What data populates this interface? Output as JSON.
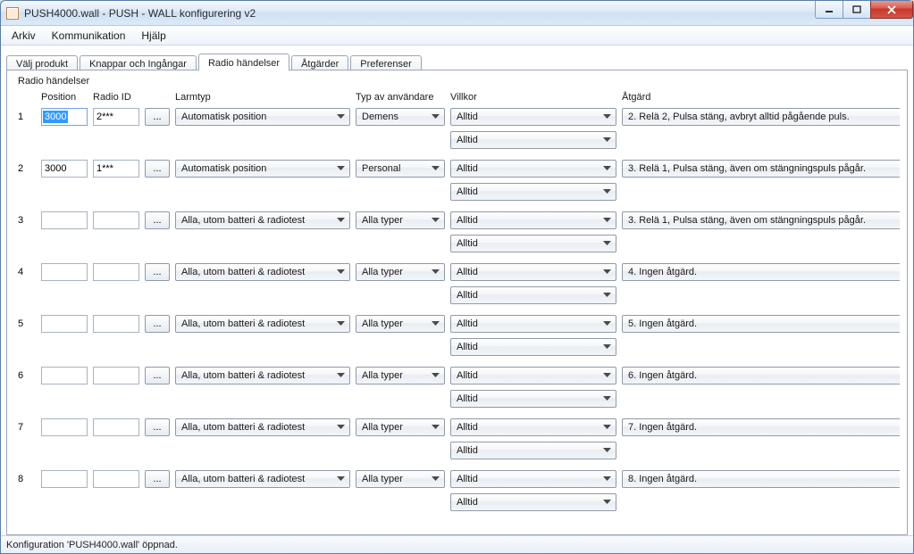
{
  "window_title": "PUSH4000.wall - PUSH - WALL konfigurering v2",
  "menu": {
    "arkiv": "Arkiv",
    "komm": "Kommunikation",
    "hjalp": "Hjälp"
  },
  "tabs": {
    "valj_produkt": "Välj produkt",
    "knappar": "Knappar och Ingångar",
    "radio": "Radio händelser",
    "atgarder": "Åtgärder",
    "preferenser": "Preferenser"
  },
  "group_title": "Radio händelser",
  "headers": {
    "position": "Position",
    "radio_id": "Radio ID",
    "larmtyp": "Larmtyp",
    "typ_av_anv": "Typ av användare",
    "villkor": "Villkor",
    "atgard": "Åtgärd"
  },
  "ellipsis": "...",
  "rows": [
    {
      "n": "1",
      "pos": "3000",
      "pos_selected": true,
      "rid": "2***",
      "larm": "Automatisk position",
      "typ": "Demens",
      "v1": "Alltid",
      "v2": "Alltid",
      "atg": "2. Relä 2, Pulsa stäng, avbryt alltid pågående puls."
    },
    {
      "n": "2",
      "pos": "3000",
      "pos_selected": false,
      "rid": "1***",
      "larm": "Automatisk position",
      "typ": "Personal",
      "v1": "Alltid",
      "v2": "Alltid",
      "atg": "3. Relä 1, Pulsa stäng, även om stängningspuls pågår."
    },
    {
      "n": "3",
      "pos": "",
      "pos_selected": false,
      "rid": "",
      "larm": "Alla, utom batteri & radiotest",
      "typ": "Alla typer",
      "v1": "Alltid",
      "v2": "Alltid",
      "atg": "3. Relä 1, Pulsa stäng, även om stängningspuls pågår."
    },
    {
      "n": "4",
      "pos": "",
      "pos_selected": false,
      "rid": "",
      "larm": "Alla, utom batteri & radiotest",
      "typ": "Alla typer",
      "v1": "Alltid",
      "v2": "Alltid",
      "atg": "4. Ingen åtgärd."
    },
    {
      "n": "5",
      "pos": "",
      "pos_selected": false,
      "rid": "",
      "larm": "Alla, utom batteri & radiotest",
      "typ": "Alla typer",
      "v1": "Alltid",
      "v2": "Alltid",
      "atg": "5. Ingen åtgärd."
    },
    {
      "n": "6",
      "pos": "",
      "pos_selected": false,
      "rid": "",
      "larm": "Alla, utom batteri & radiotest",
      "typ": "Alla typer",
      "v1": "Alltid",
      "v2": "Alltid",
      "atg": "6. Ingen åtgärd."
    },
    {
      "n": "7",
      "pos": "",
      "pos_selected": false,
      "rid": "",
      "larm": "Alla, utom batteri & radiotest",
      "typ": "Alla typer",
      "v1": "Alltid",
      "v2": "Alltid",
      "atg": "7. Ingen åtgärd."
    },
    {
      "n": "8",
      "pos": "",
      "pos_selected": false,
      "rid": "",
      "larm": "Alla, utom batteri & radiotest",
      "typ": "Alla typer",
      "v1": "Alltid",
      "v2": "Alltid",
      "atg": "8. Ingen åtgärd."
    }
  ],
  "status": "Konfiguration 'PUSH4000.wall' öppnad.",
  "colors": {
    "accent": "#3399ff",
    "border": "#8f9aa8",
    "close_bg": "#c83a2b"
  }
}
